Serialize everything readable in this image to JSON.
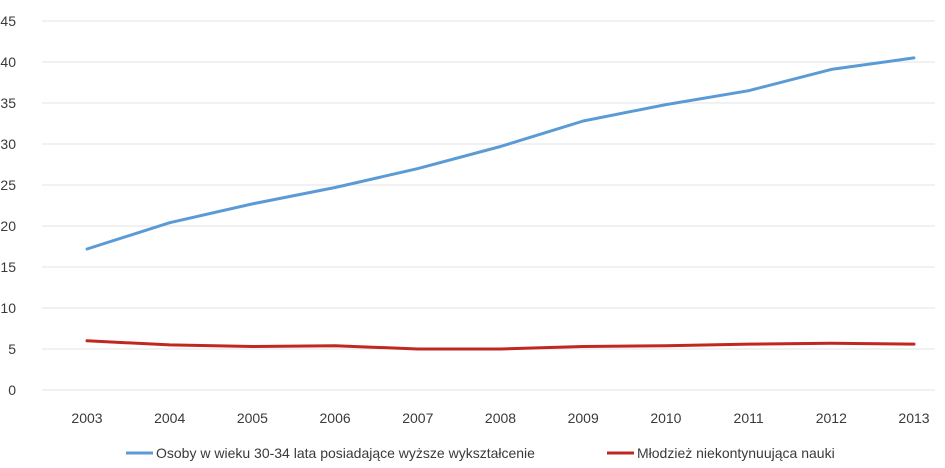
{
  "chart_data": {
    "type": "line",
    "title": "",
    "xlabel": "",
    "ylabel": "",
    "x": [
      "2003",
      "2004",
      "2005",
      "2006",
      "2007",
      "2008",
      "2009",
      "2010",
      "2011",
      "2012",
      "2013"
    ],
    "yticks": [
      "0",
      "5",
      "10",
      "15",
      "20",
      "25",
      "30",
      "35",
      "40",
      "45"
    ],
    "ylim": [
      0,
      45
    ],
    "grid": true,
    "legend_position": "bottom",
    "series": [
      {
        "name": "Osoby w wieku 30-34 lata posiadające wyższe wykształcenie",
        "color": "#5b9bd5",
        "values": [
          17.2,
          20.4,
          22.7,
          24.7,
          27.0,
          29.7,
          32.8,
          34.8,
          36.5,
          39.1,
          40.5
        ]
      },
      {
        "name": "Młodzież niekontynuująca nauki",
        "color": "#c0281f",
        "values": [
          6.0,
          5.5,
          5.3,
          5.4,
          5.0,
          5.0,
          5.3,
          5.4,
          5.6,
          5.7,
          5.6
        ]
      }
    ]
  }
}
